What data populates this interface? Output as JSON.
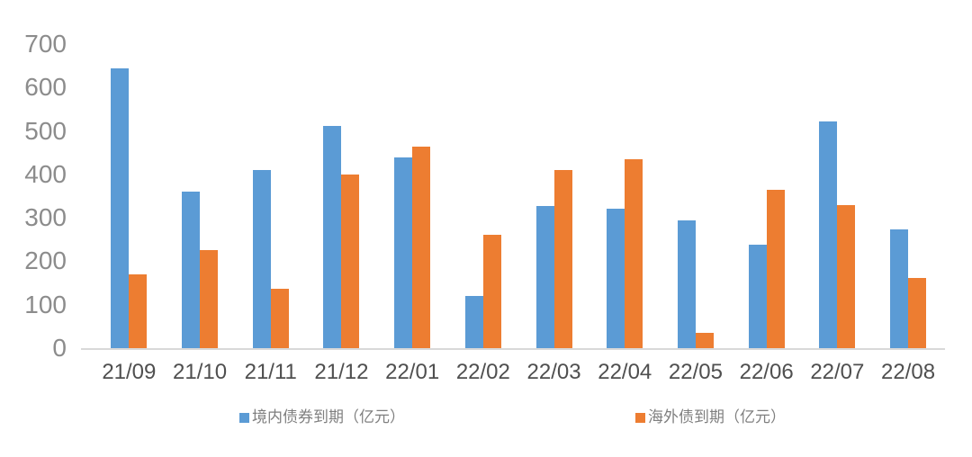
{
  "chart_data": {
    "type": "bar",
    "title": "",
    "xlabel": "",
    "ylabel": "",
    "categories": [
      "21/09",
      "21/10",
      "21/11",
      "21/12",
      "22/01",
      "22/02",
      "22/03",
      "22/04",
      "22/05",
      "22/06",
      "22/07",
      "22/08"
    ],
    "series": [
      {
        "key": "domestic-bonds-due",
        "name": "境内债券到期（亿元）",
        "color": "#5B9BD5",
        "values": [
          645,
          360,
          410,
          512,
          440,
          120,
          328,
          322,
          295,
          238,
          522,
          273
        ]
      },
      {
        "key": "overseas-bonds-due",
        "name": "海外债到期（亿元）",
        "color": "#ED7D31",
        "values": [
          170,
          225,
          136,
          400,
          463,
          260,
          410,
          434,
          36,
          365,
          330,
          162
        ]
      }
    ],
    "ylim": [
      0,
      700
    ],
    "yticks": [
      0,
      100,
      200,
      300,
      400,
      500,
      600,
      700
    ],
    "grid": false,
    "legend_position": "bottom",
    "axis_line_color": "#D9D9D9"
  }
}
